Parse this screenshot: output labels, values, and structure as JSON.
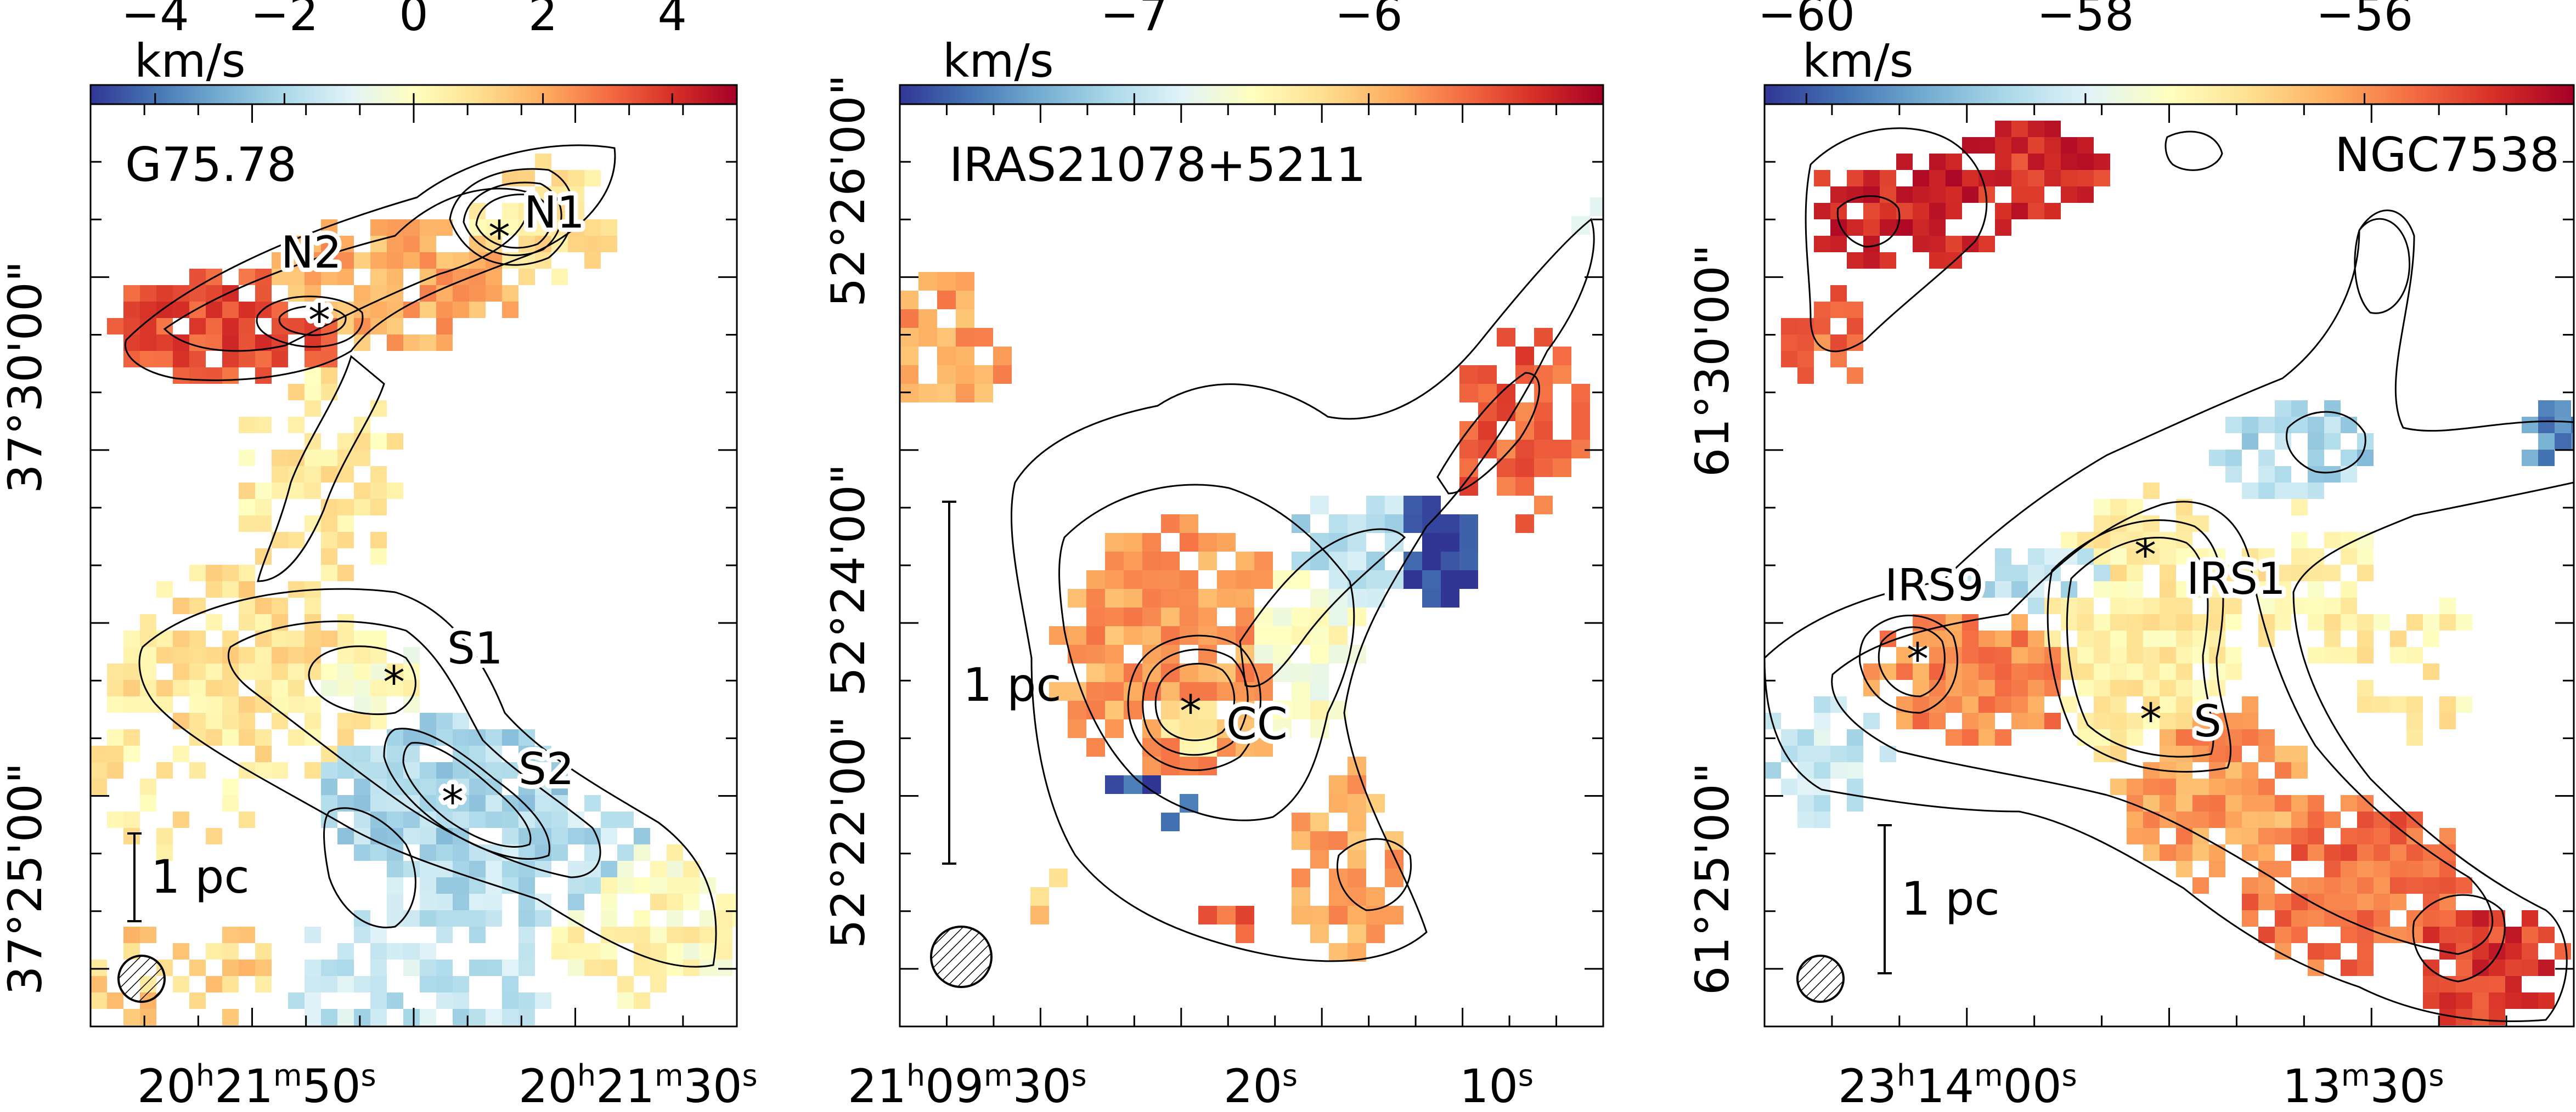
{
  "chart_data": [
    {
      "type": "heatmap",
      "title": "G75.78",
      "colorbar": {
        "label": "km/s",
        "range": [
          -5,
          5
        ],
        "ticks": [
          "−4",
          "−2",
          "0",
          "2",
          "4"
        ]
      },
      "xlabel": "",
      "ylabel": "",
      "x_tick_labels": [
        {
          "h": "20",
          "m": "21",
          "s": "50"
        },
        {
          "h": "20",
          "m": "21",
          "s": "30"
        }
      ],
      "y_tick_labels": [
        "37°30'00\"",
        "37°25'00\""
      ],
      "scale_bar": "1 pc",
      "beam": "hatched circle",
      "sources": [
        {
          "name": "N1",
          "marker": "star"
        },
        {
          "name": "N2",
          "marker": "star"
        },
        {
          "name": "S1",
          "marker": "star"
        },
        {
          "name": "S2",
          "marker": "star"
        }
      ]
    },
    {
      "type": "heatmap",
      "title": "IRAS21078+5211",
      "colorbar": {
        "label": "km/s",
        "range": [
          -8,
          -5
        ],
        "ticks": [
          "−7",
          "−6"
        ]
      },
      "xlabel": "",
      "ylabel": "",
      "x_tick_labels": [
        {
          "h": "21",
          "m": "09",
          "s": "30"
        },
        {
          "s": "20"
        },
        {
          "s": "10"
        }
      ],
      "y_tick_labels": [
        "52°26'00\"",
        "52°24'00\"",
        "52°22'00\""
      ],
      "scale_bar": "1 pc",
      "beam": "hatched circle",
      "sources": [
        {
          "name": "CC",
          "marker": "star"
        }
      ]
    },
    {
      "type": "heatmap",
      "title": "NGC7538",
      "colorbar": {
        "label": "km/s",
        "range": [
          -60.3,
          -54.5
        ],
        "ticks": [
          "−60",
          "−58",
          "−56"
        ]
      },
      "xlabel": "",
      "ylabel": "",
      "x_tick_labels": [
        {
          "h": "23",
          "m": "14",
          "s": "00"
        },
        {
          "m": "13",
          "s": "30"
        }
      ],
      "y_tick_labels": [
        "61°30'00\"",
        "61°25'00\""
      ],
      "scale_bar": "1 pc",
      "beam": "hatched circle",
      "sources": [
        {
          "name": "IRS9",
          "marker": "star"
        },
        {
          "name": "IRS1",
          "marker": "star"
        },
        {
          "name": "S",
          "marker": "star"
        }
      ]
    }
  ],
  "colormap": [
    "#313695",
    "#4575b4",
    "#74add1",
    "#abd9e9",
    "#e0f3f8",
    "#ffffbf",
    "#fee090",
    "#fdae61",
    "#f46d43",
    "#d73027",
    "#a50026"
  ]
}
